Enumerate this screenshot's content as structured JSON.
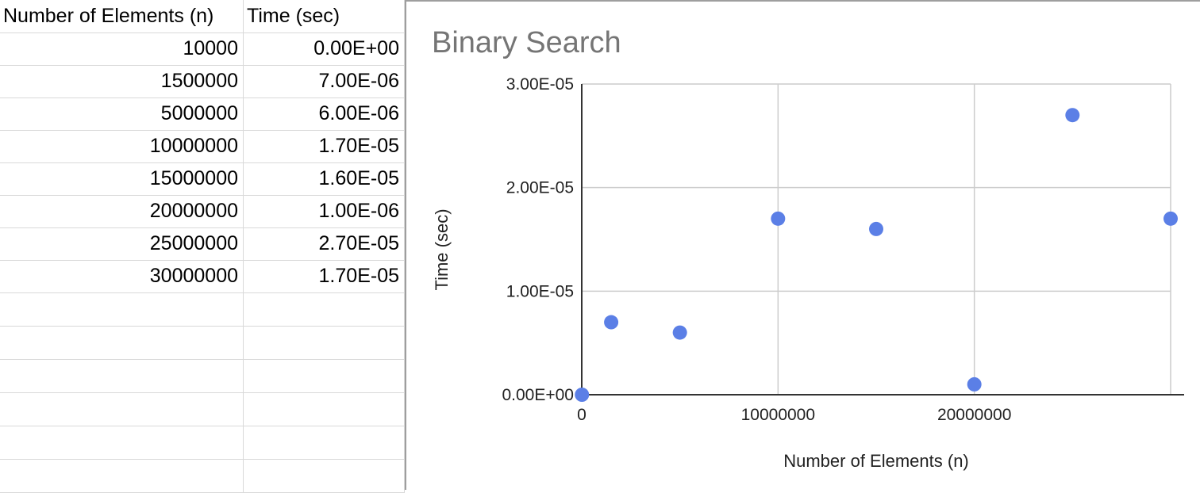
{
  "sheet": {
    "headers": [
      "Number of Elements (n)",
      "Time (sec)"
    ],
    "rows": [
      [
        "10000",
        "0.00E+00"
      ],
      [
        "1500000",
        "7.00E-06"
      ],
      [
        "5000000",
        "6.00E-06"
      ],
      [
        "10000000",
        "1.70E-05"
      ],
      [
        "15000000",
        "1.60E-05"
      ],
      [
        "20000000",
        "1.00E-06"
      ],
      [
        "25000000",
        "2.70E-05"
      ],
      [
        "30000000",
        "1.70E-05"
      ]
    ]
  },
  "chart_data": {
    "type": "scatter",
    "title": "Binary Search",
    "xlabel": "Number of Elements (n)",
    "ylabel": "Time (sec)",
    "x": [
      10000,
      1500000,
      5000000,
      10000000,
      15000000,
      20000000,
      25000000,
      30000000
    ],
    "y": [
      0.0,
      7e-06,
      6e-06,
      1.7e-05,
      1.6e-05,
      1e-06,
      2.7e-05,
      1.7e-05
    ],
    "xlim": [
      0,
      30000000
    ],
    "ylim": [
      0,
      3e-05
    ],
    "x_ticks": [
      0,
      10000000,
      20000000,
      30000000
    ],
    "x_tick_labels": [
      "0",
      "10000000",
      "20000000",
      ""
    ],
    "y_ticks": [
      0,
      1e-05,
      2e-05,
      3e-05
    ],
    "y_tick_labels": [
      "0.00E+00",
      "1.00E-05",
      "2.00E-05",
      "3.00E-05"
    ],
    "grid": true,
    "legend": "none",
    "point_color": "#5b7fe6",
    "grid_color": "#cccccc"
  }
}
